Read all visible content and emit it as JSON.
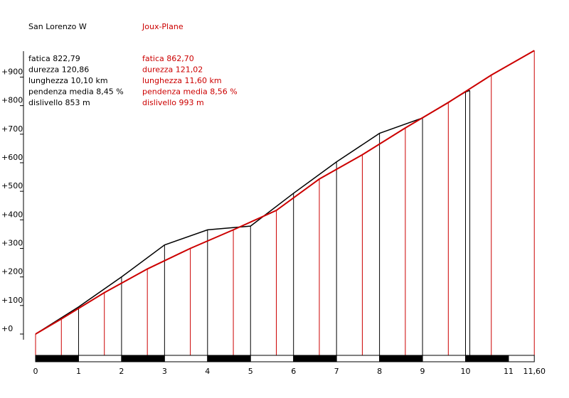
{
  "chart_data": {
    "type": "line",
    "title": "",
    "xlabel": "",
    "ylabel": "",
    "xlim": [
      0,
      11.6
    ],
    "ylim": [
      0,
      1000
    ],
    "x_ticks": [
      {
        "value": 0,
        "label": "0"
      },
      {
        "value": 1,
        "label": "1"
      },
      {
        "value": 2,
        "label": "2"
      },
      {
        "value": 3,
        "label": "3"
      },
      {
        "value": 4,
        "label": "4"
      },
      {
        "value": 5,
        "label": "5"
      },
      {
        "value": 6,
        "label": "6"
      },
      {
        "value": 7,
        "label": "7"
      },
      {
        "value": 8,
        "label": "8"
      },
      {
        "value": 9,
        "label": "9"
      },
      {
        "value": 10,
        "label": "10"
      },
      {
        "value": 11,
        "label": "11"
      },
      {
        "value": 11.6,
        "label": "11,60"
      }
    ],
    "y_ticks": [
      {
        "value": 0,
        "label": "+0"
      },
      {
        "value": 100,
        "label": "+100"
      },
      {
        "value": 200,
        "label": "+200"
      },
      {
        "value": 300,
        "label": "+300"
      },
      {
        "value": 400,
        "label": "+400"
      },
      {
        "value": 500,
        "label": "+500"
      },
      {
        "value": 600,
        "label": "+600"
      },
      {
        "value": 700,
        "label": "+700"
      },
      {
        "value": 800,
        "label": "+800"
      },
      {
        "value": 900,
        "label": "+900"
      }
    ],
    "series": [
      {
        "name": "San Lorenzo W",
        "color": "#000000",
        "stats": [
          "fatica 822,79",
          "durezza 120,86",
          "lunghezza 10,10 km",
          "pendenza media 8,45 %",
          "dislivello 853 m"
        ],
        "x": [
          0,
          1,
          2,
          3,
          4,
          5,
          6,
          7,
          8,
          9,
          10,
          10.1
        ],
        "y": [
          0,
          95,
          200,
          312,
          365,
          378,
          493,
          603,
          703,
          757,
          848,
          853
        ]
      },
      {
        "name": "Joux-Plane",
        "color": "#cc0000",
        "stats": [
          "fatica 862,70",
          "durezza 121,02",
          "lunghezza 11,60 km",
          "pendenza media 8,56 %",
          "dislivello 993 m"
        ],
        "x": [
          0,
          0.6,
          1.6,
          2.6,
          3.6,
          4.6,
          5.6,
          6.6,
          7.6,
          8.6,
          9.6,
          10.6,
          11.6
        ],
        "y": [
          0,
          53,
          145,
          228,
          300,
          365,
          433,
          543,
          628,
          722,
          811,
          907,
          993
        ]
      }
    ]
  }
}
